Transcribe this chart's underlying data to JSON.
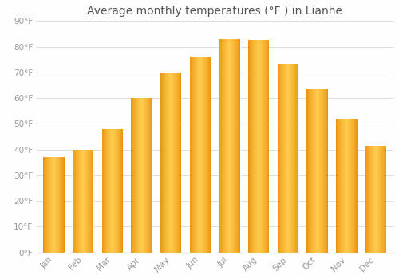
{
  "months": [
    "Jan",
    "Feb",
    "Mar",
    "Apr",
    "May",
    "Jun",
    "Jul",
    "Aug",
    "Sep",
    "Oct",
    "Nov",
    "Dec"
  ],
  "temperatures": [
    37,
    40,
    48,
    60,
    70,
    76,
    83,
    82.5,
    73.5,
    63.5,
    52,
    41.5
  ],
  "title": "Average monthly temperatures (°F ) in Lianhe",
  "bar_color_edge": "#E8900A",
  "bar_color_light": "#FFD060",
  "ylim": [
    0,
    90
  ],
  "yticks": [
    0,
    10,
    20,
    30,
    40,
    50,
    60,
    70,
    80,
    90
  ],
  "ytick_labels": [
    "0°F",
    "10°F",
    "20°F",
    "30°F",
    "40°F",
    "50°F",
    "60°F",
    "70°F",
    "80°F",
    "90°F"
  ],
  "background_color": "#FEFEFE",
  "grid_color": "#DDDDDD",
  "title_fontsize": 10,
  "tick_fontsize": 7.5,
  "title_color": "#555555",
  "tick_color": "#999999"
}
